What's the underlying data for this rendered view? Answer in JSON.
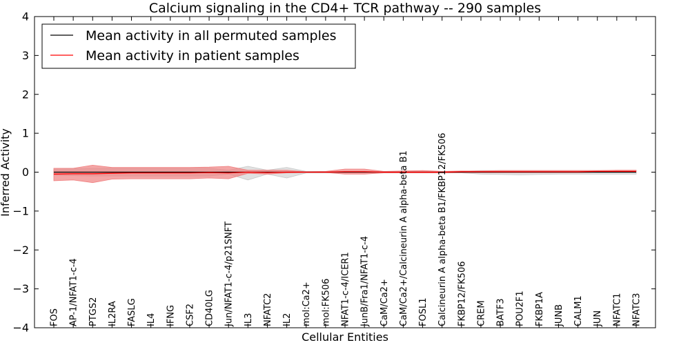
{
  "chart_data": {
    "type": "line",
    "title": "Calcium signaling in the CD4+ TCR pathway -- 290 samples",
    "xlabel": "Cellular Entities",
    "ylabel": "Inferred Activity",
    "ylim": [
      -4,
      4
    ],
    "yticks": [
      -4,
      -3,
      -2,
      -1,
      0,
      1,
      2,
      3,
      4
    ],
    "ytick_labels": [
      "−4",
      "−3",
      "−2",
      "−1",
      "0",
      "1",
      "2",
      "3",
      "4"
    ],
    "grid": false,
    "legend_position": "top-left",
    "categories": [
      "FOS",
      "AP-1/NFAT1-c-4",
      "PTGS2",
      "IL2RA",
      "FASLG",
      "IL4",
      "IFNG",
      "CSF2",
      "CD40LG",
      "Jun/NFAT1-c-4/p21SNFT",
      "IL3",
      "NFATC2",
      "IL2",
      "mol:Ca2+",
      "mol:FK506",
      "NFAT1-c-4/ICER1",
      "JunB/Fra1/NFAT1-c-4",
      "CaM/Ca2+",
      "CaM/Ca2+/Calcineurin A alpha-beta B1",
      "FOSL1",
      "Calcineurin A alpha-beta B1/FKBP12/FK506",
      "FKBP12/FK506",
      "CREM",
      "BATF3",
      "POU2F1",
      "FKBP1A",
      "JUNB",
      "CALM1",
      "JUN",
      "NFATC1",
      "NFATC3"
    ],
    "series": [
      {
        "name": "Mean activity in all permuted samples",
        "color": "#000000",
        "band_color": "#c8c8c8",
        "values": [
          0.0,
          0.0,
          0.0,
          0.0,
          0.0,
          0.0,
          0.0,
          0.0,
          0.0,
          0.0,
          0.0,
          0.0,
          0.0,
          0.0,
          0.0,
          0.0,
          0.0,
          0.0,
          0.0,
          0.0,
          0.0,
          0.0,
          0.0,
          0.0,
          0.0,
          0.0,
          0.0,
          0.0,
          0.0,
          0.0,
          0.0
        ],
        "upper": [
          0.08,
          0.09,
          0.1,
          0.1,
          0.1,
          0.1,
          0.1,
          0.1,
          0.1,
          0.05,
          0.15,
          0.05,
          0.12,
          0.02,
          0.02,
          0.02,
          0.02,
          0.02,
          0.02,
          0.02,
          0.02,
          0.02,
          0.04,
          0.04,
          0.04,
          0.04,
          0.04,
          0.04,
          0.04,
          0.04,
          0.04
        ],
        "lower": [
          -0.08,
          -0.09,
          -0.1,
          -0.1,
          -0.1,
          -0.1,
          -0.1,
          -0.1,
          -0.1,
          -0.05,
          -0.2,
          -0.05,
          -0.15,
          -0.02,
          -0.02,
          -0.02,
          -0.02,
          -0.02,
          -0.02,
          -0.02,
          -0.02,
          -0.02,
          -0.05,
          -0.06,
          -0.07,
          -0.06,
          -0.05,
          -0.05,
          -0.05,
          -0.05,
          -0.05
        ]
      },
      {
        "name": "Mean activity in patient samples",
        "color": "#ff0000",
        "band_color": "#f08080",
        "values": [
          -0.05,
          -0.04,
          -0.04,
          -0.03,
          -0.02,
          -0.02,
          -0.02,
          -0.02,
          -0.01,
          -0.02,
          0.0,
          -0.01,
          0.0,
          0.0,
          0.0,
          0.01,
          0.01,
          0.0,
          0.0,
          0.0,
          0.0,
          0.01,
          0.01,
          0.01,
          0.01,
          0.01,
          0.01,
          0.01,
          0.02,
          0.02,
          0.02
        ],
        "upper": [
          0.1,
          0.1,
          0.18,
          0.12,
          0.12,
          0.12,
          0.12,
          0.12,
          0.13,
          0.15,
          0.05,
          0.05,
          0.05,
          0.01,
          0.02,
          0.08,
          0.08,
          0.02,
          0.03,
          0.04,
          0.02,
          0.03,
          0.03,
          0.04,
          0.04,
          0.04,
          0.04,
          0.04,
          0.04,
          0.05,
          0.05
        ],
        "lower": [
          -0.22,
          -0.2,
          -0.27,
          -0.18,
          -0.17,
          -0.17,
          -0.17,
          -0.17,
          -0.15,
          -0.17,
          -0.03,
          -0.05,
          -0.02,
          -0.01,
          -0.01,
          -0.05,
          -0.05,
          -0.02,
          -0.02,
          -0.02,
          -0.02,
          -0.01,
          -0.01,
          -0.01,
          -0.01,
          -0.01,
          -0.01,
          -0.01,
          0.0,
          0.0,
          0.0
        ]
      }
    ]
  }
}
